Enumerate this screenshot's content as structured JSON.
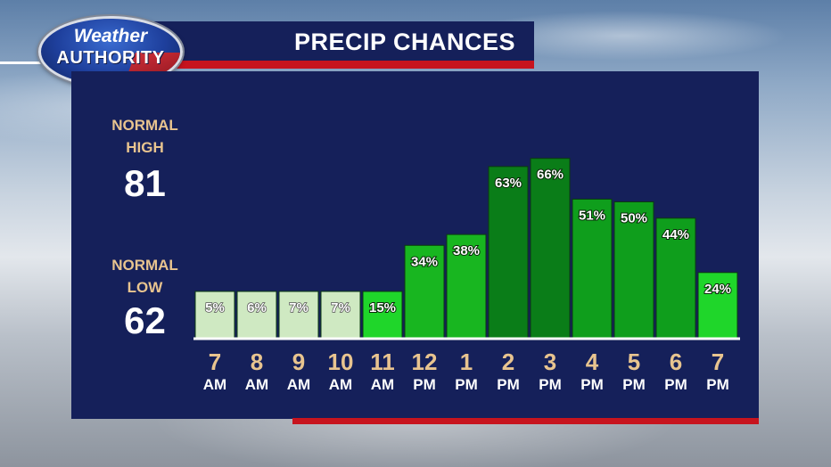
{
  "header": {
    "title": "PRECIP CHANCES",
    "logo_line1": "Weather",
    "logo_line2": "AUTHORITY"
  },
  "sidebar": {
    "normal_high_label_1": "NORMAL",
    "normal_high_label_2": "HIGH",
    "normal_high_value": "81",
    "normal_low_label_1": "NORMAL",
    "normal_low_label_2": "LOW",
    "normal_low_value": "62"
  },
  "colors": {
    "panel": "#15205a",
    "accent_red": "#c7141e",
    "label_tan": "#e8c48f"
  },
  "chart_data": {
    "type": "bar",
    "title": "PRECIP CHANCES",
    "categories": [
      "7 AM",
      "8 AM",
      "9 AM",
      "10 AM",
      "11 AM",
      "12 PM",
      "1 PM",
      "2 PM",
      "3 PM",
      "4 PM",
      "5 PM",
      "6 PM",
      "7 PM"
    ],
    "hour_labels": [
      "7",
      "8",
      "9",
      "10",
      "11",
      "12",
      "1",
      "2",
      "3",
      "4",
      "5",
      "6",
      "7"
    ],
    "ampm_labels": [
      "AM",
      "AM",
      "AM",
      "AM",
      "AM",
      "PM",
      "PM",
      "PM",
      "PM",
      "PM",
      "PM",
      "PM",
      "PM"
    ],
    "values": [
      5,
      6,
      7,
      7,
      15,
      34,
      38,
      63,
      66,
      51,
      50,
      44,
      24
    ],
    "value_labels": [
      "5%",
      "6%",
      "7%",
      "7%",
      "15%",
      "34%",
      "38%",
      "63%",
      "66%",
      "51%",
      "50%",
      "44%",
      "24%"
    ],
    "ylim": [
      0,
      100
    ],
    "grid": false,
    "bar_colors": [
      "#cfe9c2",
      "#cfe9c2",
      "#cfe9c2",
      "#cfe9c2",
      "#1fd62a",
      "#18b620",
      "#18b620",
      "#0a7d18",
      "#0a7d18",
      "#0f9e1c",
      "#0f9e1c",
      "#0f9e1c",
      "#1fd62a"
    ]
  }
}
